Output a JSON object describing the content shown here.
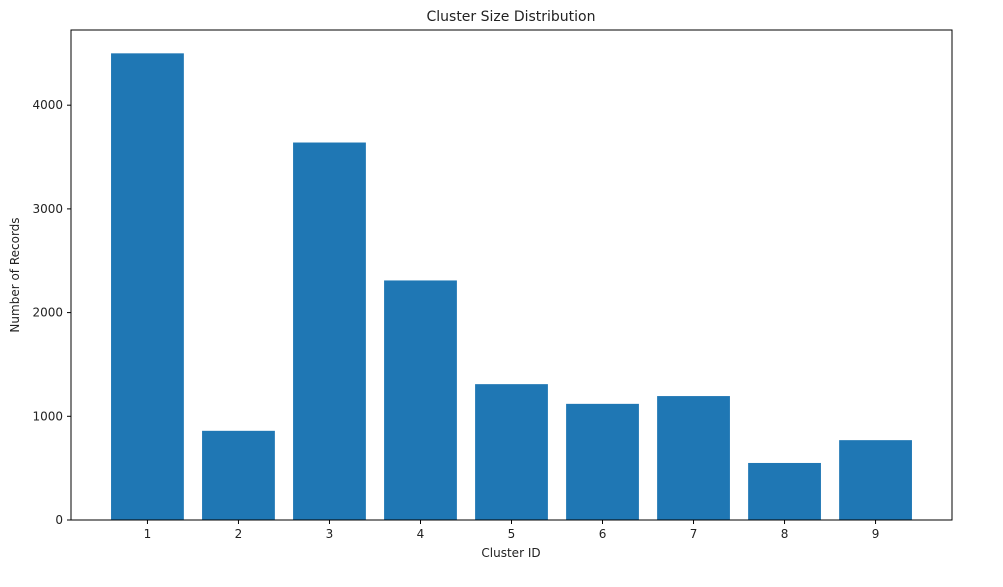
{
  "chart_data": {
    "type": "bar",
    "title": "Cluster Size Distribution",
    "x_label": "Cluster ID",
    "y_label": "Number of Records",
    "categories": [
      "1",
      "2",
      "3",
      "4",
      "5",
      "6",
      "7",
      "8",
      "9"
    ],
    "values": [
      4500,
      860,
      3640,
      2310,
      1310,
      1120,
      1195,
      550,
      770
    ],
    "color": "#1f77b4",
    "ylim": [
      0,
      4725
    ],
    "yticks": [
      0,
      1000,
      2000,
      3000,
      4000
    ],
    "grid": false
  }
}
